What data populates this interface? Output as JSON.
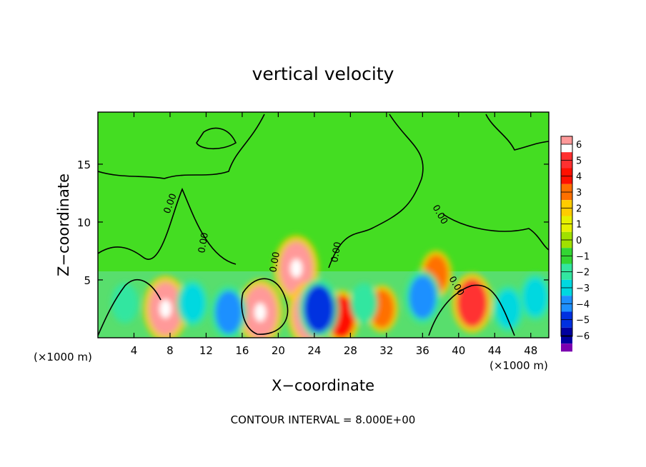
{
  "chart_data": {
    "type": "heatmap",
    "title": "vertical velocity",
    "xlabel": "X−coordinate",
    "ylabel": "Z−coordinate",
    "x_unit_left": "(×1000 m)",
    "x_unit_right": "(×1000 m)",
    "xlim": [
      0,
      50
    ],
    "ylim": [
      0,
      19.5
    ],
    "x_ticks": [
      4,
      8,
      12,
      16,
      20,
      24,
      28,
      32,
      36,
      40,
      44,
      48
    ],
    "y_ticks": [
      5,
      10,
      15
    ],
    "contour_interval_text": "CONTOUR INTERVAL = 8.000E+00",
    "contour_labels": [
      "0.00",
      "0.00",
      "0.00",
      "0.00",
      "0.00",
      "0.00"
    ],
    "colorbar": {
      "labels": [
        "6",
        "5",
        "4",
        "3",
        "2",
        "1",
        "0",
        "−1",
        "−2",
        "−3",
        "−4",
        "−5",
        "−6"
      ],
      "colors": [
        "#ff9999",
        "#ff3030",
        "#ff1000",
        "#ff7000",
        "#ffcc00",
        "#e6f000",
        "#a0e000",
        "#33d633",
        "#33e6a0",
        "#00d8e0",
        "#1e90ff",
        "#0030e0",
        "#0000a0",
        "#7a00b0"
      ]
    },
    "cells": [
      {
        "x": 7.5,
        "z": 2.5,
        "v": 6
      },
      {
        "x": 18,
        "z": 2.2,
        "v": 6
      },
      {
        "x": 22,
        "z": 6,
        "v": 6
      },
      {
        "x": 23.5,
        "z": 2,
        "v": 6
      },
      {
        "x": 41.5,
        "z": 3,
        "v": 5
      },
      {
        "x": 27,
        "z": 1.8,
        "v": 4
      },
      {
        "x": 37.5,
        "z": 5.5,
        "v": 3
      },
      {
        "x": 31.5,
        "z": 2.5,
        "v": 3
      },
      {
        "x": 14.5,
        "z": 2.2,
        "v": -4
      },
      {
        "x": 24.5,
        "z": 2.5,
        "v": -5
      },
      {
        "x": 36,
        "z": 3.5,
        "v": -4
      },
      {
        "x": 45.5,
        "z": 2.5,
        "v": -3
      },
      {
        "x": 10.5,
        "z": 3,
        "v": -3
      },
      {
        "x": 3,
        "z": 3,
        "v": -2
      },
      {
        "x": 29.5,
        "z": 3,
        "v": -2
      },
      {
        "x": 48.5,
        "z": 3.5,
        "v": -3
      }
    ]
  }
}
